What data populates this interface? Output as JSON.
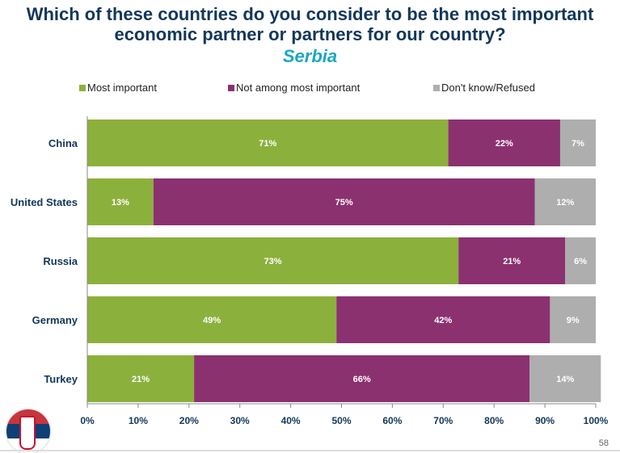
{
  "title_line1": "Which of these countries do you consider to be the most important",
  "title_line2": "economic partner or partners for our country?",
  "subtitle": "Serbia",
  "page_number": "58",
  "chart_data": {
    "type": "bar",
    "orientation": "horizontal-stacked-100",
    "categories": [
      "China",
      "United States",
      "Russia",
      "Germany",
      "Turkey"
    ],
    "series": [
      {
        "name": "Most important",
        "color": "#8cb03c",
        "values": [
          71,
          13,
          73,
          49,
          21
        ]
      },
      {
        "name": "Not among most important",
        "color": "#8b3170",
        "values": [
          22,
          75,
          21,
          42,
          66
        ]
      },
      {
        "name": "Don't know/Refused",
        "color": "#aeaeae",
        "values": [
          7,
          12,
          6,
          9,
          14
        ]
      }
    ],
    "xticks": [
      "0%",
      "10%",
      "20%",
      "30%",
      "40%",
      "50%",
      "60%",
      "70%",
      "80%",
      "90%",
      "100%"
    ],
    "xlim": [
      0,
      100
    ],
    "legend": "top"
  }
}
